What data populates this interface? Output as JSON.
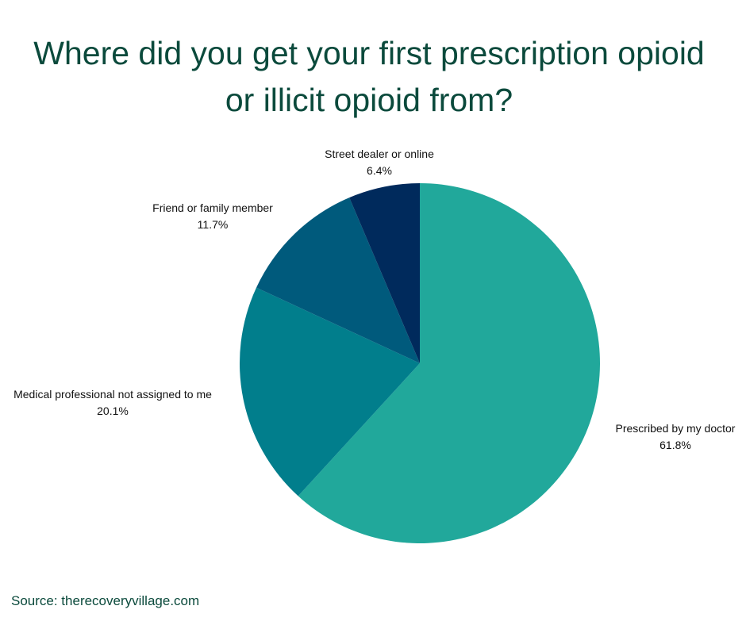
{
  "title_line1": "Where did you get your first prescription opioid",
  "title_line2": "or illicit opioid from?",
  "source": "Source: therecoveryvillage.com",
  "colors": {
    "title": "#0b4a3c",
    "background": "#ffffff"
  },
  "chart_data": {
    "type": "pie",
    "title": "Where did you get your first prescription opioid or illicit opioid from?",
    "categories": [
      "Prescribed by my doctor",
      "Medical professional not assigned to me",
      "Friend or family member",
      "Street dealer or online"
    ],
    "values": [
      61.8,
      20.1,
      11.7,
      6.4
    ],
    "labels": [
      "61.8%",
      "20.1%",
      "11.7%",
      "6.4%"
    ],
    "colors": [
      "#21a89b",
      "#017e8c",
      "#005a7c",
      "#002a5c"
    ],
    "start": "12 o'clock",
    "direction": "clockwise",
    "legend": "none"
  }
}
